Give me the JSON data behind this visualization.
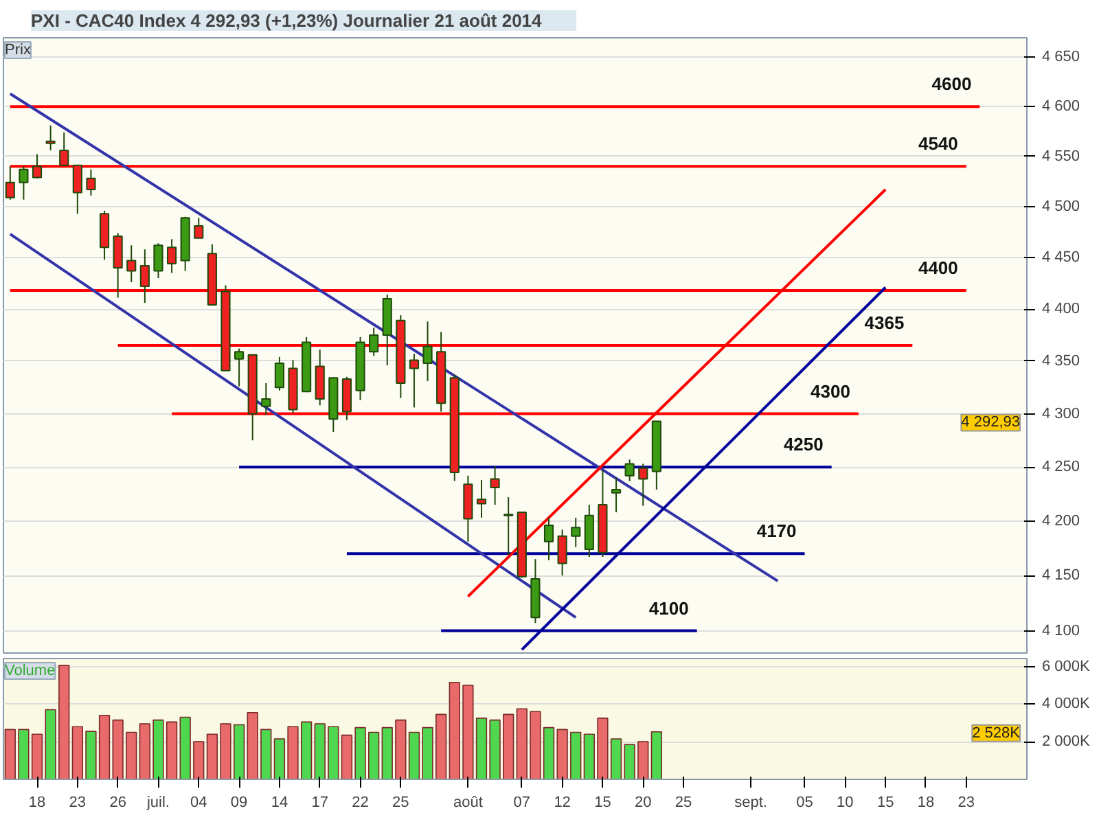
{
  "chart_data": [
    {
      "type": "candlestick",
      "title": "PXI - CAC40 Index    4 292,93 (+1,23%)    Journalier  21 août 2014",
      "log": "y",
      "grid": "y",
      "tick_labels": "y",
      "ylim": [
        4080,
        4670
      ],
      "yticks": [
        {
          "value": 4100,
          "label": "4 100"
        },
        {
          "value": 4150,
          "label": "4 150"
        },
        {
          "value": 4200,
          "label": "4 200"
        },
        {
          "value": 4250,
          "label": "4 250"
        },
        {
          "value": 4300,
          "label": "4 300"
        },
        {
          "value": 4350,
          "label": "4 350"
        },
        {
          "value": 4400,
          "label": "4 400"
        },
        {
          "value": 4450,
          "label": "4 450"
        },
        {
          "value": 4500,
          "label": "4 500"
        },
        {
          "value": 4550,
          "label": "4 550"
        },
        {
          "value": 4600,
          "label": "4 600"
        },
        {
          "value": 4650,
          "label": "4 650"
        }
      ],
      "categories": [
        null,
        null,
        null,
        null,
        null,
        null,
        null,
        null,
        null,
        null,
        null,
        null,
        null,
        null,
        null,
        null,
        null,
        null,
        null,
        null,
        null,
        null,
        null,
        null,
        null,
        null,
        null,
        null,
        null,
        null,
        null,
        null,
        null,
        null,
        null,
        null,
        null,
        null,
        null,
        null,
        null,
        null,
        null,
        null,
        null,
        null,
        null,
        null,
        null,
        null,
        null,
        null,
        null,
        null,
        null,
        null,
        null,
        null,
        null,
        null,
        null,
        null,
        null,
        null,
        null,
        null,
        null,
        null,
        null,
        null,
        null,
        null,
        null,
        null,
        null,
        null
      ],
      "ohlc": [
        [
          4524,
          4540,
          4507,
          4509
        ],
        [
          4524,
          4540,
          4507,
          4537
        ],
        [
          4540,
          4552,
          4528,
          4529
        ],
        [
          4565,
          4581,
          4556,
          4563
        ],
        [
          4556,
          4574,
          4541,
          4541
        ],
        [
          4541,
          4541,
          4493,
          4514
        ],
        [
          4528,
          4537,
          4511,
          4517
        ],
        [
          4493,
          4496,
          4448,
          4460
        ],
        [
          4471,
          4474,
          4411,
          4440
        ],
        [
          4447,
          4462,
          4426,
          4437
        ],
        [
          4442,
          4458,
          4406,
          4422
        ],
        [
          4437,
          4464,
          4430,
          4462
        ],
        [
          4460,
          4468,
          4435,
          4444
        ],
        [
          4447,
          4490,
          4437,
          4489
        ],
        [
          4481,
          4489,
          4469,
          4469
        ],
        [
          4454,
          4463,
          4404,
          4404
        ],
        [
          4417,
          4423,
          4341,
          4341
        ],
        [
          4352,
          4362,
          4326,
          4359
        ],
        [
          4356,
          4356,
          4275,
          4300
        ],
        [
          4307,
          4329,
          4299,
          4314
        ],
        [
          4325,
          4354,
          4322,
          4348
        ],
        [
          4343,
          4351,
          4301,
          4304
        ],
        [
          4321,
          4373,
          4321,
          4368
        ],
        [
          4345,
          4361,
          4308,
          4314
        ],
        [
          4295,
          4334,
          4283,
          4334
        ],
        [
          4333,
          4335,
          4294,
          4302
        ],
        [
          4322,
          4373,
          4313,
          4368
        ],
        [
          4359,
          4382,
          4355,
          4375
        ],
        [
          4375,
          4414,
          4346,
          4410
        ],
        [
          4389,
          4394,
          4315,
          4329
        ],
        [
          4351,
          4357,
          4306,
          4343
        ],
        [
          4348,
          4388,
          4331,
          4364
        ],
        [
          4359,
          4378,
          4302,
          4310
        ],
        [
          4334,
          4337,
          4237,
          4245
        ],
        [
          4234,
          4242,
          4181,
          4202
        ],
        [
          4220,
          4238,
          4203,
          4216
        ],
        [
          4239,
          4251,
          4215,
          4231
        ],
        [
          4205,
          4222,
          4169,
          4206
        ],
        [
          4208,
          4208,
          4148,
          4149
        ],
        [
          4112,
          4165,
          4107,
          4147
        ],
        [
          4181,
          4203,
          4164,
          4196
        ],
        [
          4186,
          4192,
          4150,
          4161
        ],
        [
          4186,
          4203,
          4176,
          4194
        ],
        [
          4174,
          4215,
          4167,
          4205
        ],
        [
          4215,
          4247,
          4167,
          4171
        ],
        [
          4226,
          4240,
          4208,
          4229
        ],
        [
          4242,
          4257,
          4237,
          4253
        ],
        [
          4249,
          4253,
          4214,
          4239
        ],
        [
          4246,
          4293,
          4229,
          4293
        ],
        null,
        null,
        null,
        null,
        null,
        null,
        null,
        null,
        null,
        null,
        null,
        null,
        null,
        null,
        null,
        null,
        null,
        null,
        null,
        null,
        null,
        null,
        null,
        null,
        null,
        null,
        null
      ],
      "colors": [
        "#ee2222",
        "#3c9a14",
        "#ee2222",
        "#ee2222",
        "#ee2222",
        "#ee2222",
        "#ee2222",
        "#ee2222",
        "#ee2222",
        "#ee2222",
        "#ee2222",
        "#3c9a14",
        "#ee2222",
        "#3c9a14",
        "#ee2222",
        "#ee2222",
        "#ee2222",
        "#3c9a14",
        "#ee2222",
        "#3c9a14",
        "#3c9a14",
        "#ee2222",
        "#3c9a14",
        "#ee2222",
        "#3c9a14",
        "#ee2222",
        "#3c9a14",
        "#3c9a14",
        "#3c9a14",
        "#ee2222",
        "#ee2222",
        "#3c9a14",
        "#ee2222",
        "#ee2222",
        "#ee2222",
        "#ee2222",
        "#ee2222",
        "#3c9a14",
        "#ee2222",
        "#3c9a14",
        "#3c9a14",
        "#ee2222",
        "#3c9a14",
        "#3c9a14",
        "#ee2222",
        "#3c9a14",
        "#3c9a14",
        "#ee2222",
        "#3c9a14",
        null,
        null,
        null,
        null,
        null,
        null,
        null,
        null,
        null,
        null,
        null,
        null,
        null,
        null,
        null,
        null,
        null,
        null,
        null,
        null,
        null,
        null,
        null,
        null,
        null,
        null,
        null
      ],
      "series": [
        {
          "type": "line",
          "name": "4600",
          "color": "#ff0000",
          "values": [
            4600,
            null,
            null,
            null,
            null,
            null,
            null,
            null,
            null,
            null,
            null,
            null,
            null,
            null,
            null,
            null,
            null,
            null,
            null,
            null,
            null,
            null,
            null,
            null,
            null,
            null,
            null,
            null,
            null,
            null,
            null,
            null,
            null,
            null,
            null,
            null,
            null,
            null,
            null,
            null,
            null,
            null,
            null,
            null,
            null,
            null,
            null,
            null,
            null,
            null,
            null,
            null,
            null,
            null,
            null,
            null,
            null,
            null,
            null,
            null,
            null,
            null,
            null,
            null,
            null,
            null,
            null,
            null,
            null,
            null,
            null,
            null,
            4600,
            null,
            null,
            null
          ]
        },
        {
          "type": "line",
          "name": "4540",
          "color": "#ff0000",
          "values": [
            4540,
            null,
            null,
            null,
            null,
            null,
            null,
            null,
            null,
            null,
            null,
            null,
            null,
            null,
            null,
            null,
            null,
            null,
            null,
            null,
            null,
            null,
            null,
            null,
            null,
            null,
            null,
            null,
            null,
            null,
            null,
            null,
            null,
            null,
            null,
            null,
            null,
            null,
            null,
            null,
            null,
            null,
            null,
            null,
            null,
            null,
            null,
            null,
            null,
            null,
            null,
            null,
            null,
            null,
            null,
            null,
            null,
            null,
            null,
            null,
            null,
            null,
            null,
            null,
            null,
            null,
            null,
            null,
            null,
            null,
            null,
            4540,
            null,
            null,
            null,
            null
          ]
        },
        {
          "type": "line",
          "name": "4400",
          "color": "#ff0000",
          "values": [
            4418,
            null,
            null,
            null,
            null,
            null,
            null,
            null,
            null,
            null,
            null,
            null,
            null,
            null,
            null,
            null,
            null,
            null,
            null,
            null,
            null,
            null,
            null,
            null,
            null,
            null,
            null,
            null,
            null,
            null,
            null,
            null,
            null,
            null,
            null,
            null,
            null,
            null,
            null,
            null,
            null,
            null,
            null,
            null,
            null,
            null,
            null,
            null,
            null,
            null,
            null,
            null,
            null,
            null,
            null,
            null,
            null,
            null,
            null,
            null,
            null,
            null,
            null,
            null,
            null,
            null,
            null,
            null,
            null,
            null,
            null,
            4418,
            null,
            null,
            null,
            null
          ]
        },
        {
          "type": "line",
          "name": "4365",
          "color": "#ff0000",
          "values": [
            null,
            null,
            null,
            null,
            null,
            null,
            null,
            null,
            4365,
            null,
            null,
            null,
            null,
            null,
            null,
            null,
            null,
            null,
            null,
            null,
            null,
            null,
            null,
            null,
            null,
            null,
            null,
            null,
            null,
            null,
            null,
            null,
            null,
            null,
            null,
            null,
            null,
            null,
            null,
            null,
            null,
            null,
            null,
            null,
            null,
            null,
            null,
            null,
            null,
            null,
            null,
            null,
            null,
            null,
            null,
            null,
            null,
            null,
            null,
            null,
            null,
            null,
            null,
            null,
            null,
            null,
            null,
            4365,
            null,
            null,
            null,
            null,
            null,
            null,
            null,
            null
          ]
        },
        {
          "type": "line",
          "name": "4300",
          "color": "#ff0000",
          "values": [
            null,
            null,
            null,
            null,
            null,
            null,
            null,
            null,
            null,
            null,
            null,
            null,
            4300,
            null,
            null,
            null,
            null,
            null,
            null,
            null,
            null,
            null,
            null,
            null,
            null,
            null,
            null,
            null,
            null,
            null,
            null,
            null,
            null,
            null,
            null,
            null,
            null,
            null,
            null,
            null,
            null,
            null,
            null,
            null,
            null,
            null,
            null,
            null,
            null,
            null,
            null,
            null,
            null,
            null,
            null,
            null,
            null,
            null,
            null,
            null,
            null,
            null,
            null,
            4300,
            null,
            null,
            null,
            null,
            null,
            null,
            null,
            null,
            null,
            null,
            null,
            null
          ]
        },
        {
          "type": "line",
          "name": "4250",
          "color": "#000099",
          "values": [
            null,
            null,
            null,
            null,
            null,
            null,
            null,
            null,
            null,
            null,
            null,
            null,
            null,
            null,
            null,
            null,
            null,
            4250,
            null,
            null,
            null,
            null,
            null,
            null,
            null,
            null,
            null,
            null,
            null,
            null,
            null,
            null,
            null,
            null,
            null,
            null,
            null,
            null,
            null,
            null,
            null,
            null,
            null,
            null,
            null,
            null,
            null,
            null,
            null,
            null,
            null,
            null,
            null,
            null,
            null,
            null,
            null,
            null,
            null,
            null,
            null,
            4250,
            null,
            null,
            null,
            null,
            null,
            null,
            null,
            null,
            null,
            null,
            null,
            null,
            null,
            null
          ]
        },
        {
          "type": "line",
          "name": "4170",
          "color": "#000099",
          "values": [
            null,
            null,
            null,
            null,
            null,
            null,
            null,
            null,
            null,
            null,
            null,
            null,
            null,
            null,
            null,
            null,
            null,
            null,
            null,
            null,
            null,
            null,
            null,
            null,
            null,
            4170,
            null,
            null,
            null,
            null,
            null,
            null,
            null,
            null,
            null,
            null,
            null,
            null,
            null,
            null,
            null,
            null,
            null,
            null,
            null,
            null,
            null,
            null,
            null,
            null,
            null,
            null,
            null,
            null,
            null,
            null,
            null,
            null,
            null,
            4170,
            null,
            null,
            null,
            null,
            null,
            null,
            null,
            null,
            null,
            null,
            null,
            null,
            null,
            null,
            null,
            null
          ]
        },
        {
          "type": "line",
          "name": "4100",
          "color": "#000099",
          "values": [
            null,
            null,
            null,
            null,
            null,
            null,
            null,
            null,
            null,
            null,
            null,
            null,
            null,
            null,
            null,
            null,
            null,
            null,
            null,
            null,
            null,
            null,
            null,
            null,
            null,
            null,
            null,
            null,
            null,
            null,
            null,
            null,
            4100,
            null,
            null,
            null,
            null,
            null,
            null,
            null,
            null,
            null,
            null,
            null,
            null,
            null,
            null,
            null,
            null,
            null,
            null,
            4100,
            null,
            null,
            null,
            null,
            null,
            null,
            null,
            null,
            null,
            null,
            null,
            null,
            null,
            null,
            null,
            null,
            null,
            null,
            null,
            null,
            null,
            null,
            null,
            null
          ]
        },
        {
          "type": "line",
          "color": "#3333aa",
          "values": [
            4613,
            null,
            null,
            null,
            null,
            null,
            null,
            null,
            null,
            null,
            null,
            null,
            null,
            null,
            null,
            null,
            null,
            null,
            null,
            null,
            null,
            null,
            null,
            null,
            null,
            null,
            null,
            null,
            null,
            null,
            null,
            null,
            null,
            null,
            null,
            null,
            null,
            null,
            null,
            null,
            null,
            null,
            null,
            null,
            null,
            null,
            null,
            null,
            null,
            null,
            null,
            null,
            null,
            null,
            null,
            null,
            null,
            4145,
            null,
            null,
            null,
            null,
            null,
            null,
            null,
            null,
            null,
            null,
            null,
            null,
            null,
            null,
            null,
            null,
            null,
            null
          ]
        },
        {
          "type": "line",
          "color": "#3333aa",
          "values": [
            4473,
            null,
            null,
            null,
            null,
            null,
            null,
            null,
            null,
            null,
            null,
            null,
            null,
            null,
            null,
            null,
            null,
            null,
            null,
            null,
            null,
            null,
            null,
            null,
            null,
            null,
            null,
            null,
            null,
            null,
            null,
            null,
            null,
            null,
            null,
            null,
            null,
            null,
            null,
            null,
            null,
            null,
            4112,
            null,
            null,
            null,
            null,
            null,
            null,
            null,
            null,
            null,
            null,
            null,
            null,
            null,
            null,
            null,
            null,
            null,
            null,
            null,
            null,
            null,
            null,
            null,
            null,
            null,
            null,
            null,
            null,
            null,
            null,
            null,
            null,
            null
          ]
        },
        {
          "type": "line",
          "color": "#ff0000",
          "values": [
            null,
            null,
            null,
            null,
            null,
            null,
            null,
            null,
            null,
            null,
            null,
            null,
            null,
            null,
            null,
            null,
            null,
            null,
            null,
            null,
            null,
            null,
            null,
            null,
            null,
            null,
            null,
            null,
            null,
            null,
            null,
            null,
            null,
            null,
            4131,
            null,
            null,
            null,
            null,
            null,
            null,
            null,
            null,
            null,
            null,
            null,
            null,
            null,
            null,
            null,
            null,
            null,
            null,
            null,
            null,
            null,
            null,
            null,
            null,
            null,
            null,
            null,
            null,
            null,
            null,
            4517,
            null,
            null,
            null,
            null,
            null,
            null,
            null,
            null,
            null,
            null
          ]
        },
        {
          "type": "line",
          "color": "#000099",
          "values": [
            null,
            null,
            null,
            null,
            null,
            null,
            null,
            null,
            null,
            null,
            null,
            null,
            null,
            null,
            null,
            null,
            null,
            null,
            null,
            null,
            null,
            null,
            null,
            null,
            null,
            null,
            null,
            null,
            null,
            null,
            null,
            null,
            null,
            null,
            null,
            null,
            null,
            null,
            4083,
            null,
            null,
            null,
            null,
            null,
            null,
            null,
            null,
            null,
            null,
            null,
            null,
            null,
            null,
            null,
            null,
            null,
            null,
            null,
            null,
            null,
            null,
            null,
            null,
            null,
            null,
            4421,
            null,
            null,
            null,
            null,
            null,
            null,
            null,
            null,
            null,
            null
          ]
        }
      ],
      "annotations": [
        "Prix",
        "4 292,93"
      ]
    },
    {
      "type": "bar",
      "grid": "y",
      "ylim": [
        0,
        6420
      ],
      "yticks": [
        {
          "value": 2000,
          "label": "2 000K"
        },
        {
          "value": 4000,
          "label": "4 000K"
        },
        {
          "value": 6000,
          "label": "6 000K"
        }
      ],
      "categories": [
        null,
        null,
        "18",
        null,
        null,
        "23",
        null,
        null,
        "26",
        null,
        null,
        "juil.",
        null,
        null,
        "04",
        null,
        null,
        "09",
        null,
        null,
        "14",
        null,
        null,
        "17",
        null,
        null,
        "22",
        null,
        null,
        "25",
        null,
        null,
        null,
        null,
        "août",
        null,
        null,
        null,
        "07",
        null,
        null,
        "12",
        null,
        null,
        "15",
        null,
        null,
        "20",
        null,
        null,
        "25",
        null,
        null,
        null,
        null,
        "sept.",
        null,
        null,
        null,
        "05",
        null,
        null,
        "10",
        null,
        null,
        "15",
        null,
        null,
        "18",
        null,
        null,
        "23",
        null,
        null,
        null,
        null
      ],
      "values": [
        2650,
        2650,
        2400,
        3700,
        6050,
        2800,
        2550,
        3400,
        3150,
        2500,
        2950,
        3150,
        3050,
        3300,
        2000,
        2400,
        2950,
        2900,
        3550,
        2650,
        2150,
        2800,
        3050,
        2950,
        2800,
        2350,
        2750,
        2500,
        2750,
        3150,
        2500,
        2750,
        3450,
        5150,
        5000,
        3250,
        3150,
        3450,
        3750,
        3600,
        2750,
        2650,
        2500,
        2400,
        3250,
        2150,
        1850,
        2000,
        2528,
        null,
        null,
        null,
        null,
        null,
        null,
        null,
        null,
        null,
        null,
        null,
        null,
        null,
        null,
        null,
        null,
        null,
        null,
        null,
        null,
        null,
        null,
        null,
        null,
        null,
        null,
        null
      ],
      "colors": [
        "#e86a6a",
        "#4fd84f",
        "#e86a6a",
        "#4fd84f",
        "#e86a6a",
        "#e86a6a",
        "#4fd84f",
        "#e86a6a",
        "#e86a6a",
        "#e86a6a",
        "#e86a6a",
        "#4fd84f",
        "#e86a6a",
        "#4fd84f",
        "#e86a6a",
        "#e86a6a",
        "#e86a6a",
        "#4fd84f",
        "#e86a6a",
        "#4fd84f",
        "#4fd84f",
        "#e86a6a",
        "#4fd84f",
        "#4fd84f",
        "#4fd84f",
        "#e86a6a",
        "#4fd84f",
        "#4fd84f",
        "#4fd84f",
        "#e86a6a",
        "#4fd84f",
        "#4fd84f",
        "#e86a6a",
        "#e86a6a",
        "#e86a6a",
        "#4fd84f",
        "#4fd84f",
        "#e86a6a",
        "#e86a6a",
        "#e86a6a",
        "#4fd84f",
        "#e86a6a",
        "#4fd84f",
        "#4fd84f",
        "#e86a6a",
        "#4fd84f",
        "#4fd84f",
        "#e86a6a",
        "#4fd84f",
        null,
        null,
        null,
        null,
        null,
        null,
        null,
        null,
        null,
        null,
        null,
        null,
        null,
        null,
        null,
        null,
        null,
        null,
        null,
        null,
        null,
        null,
        null,
        null,
        null,
        null,
        null
      ],
      "annotations": [
        "Volume",
        "2 528K"
      ]
    }
  ]
}
